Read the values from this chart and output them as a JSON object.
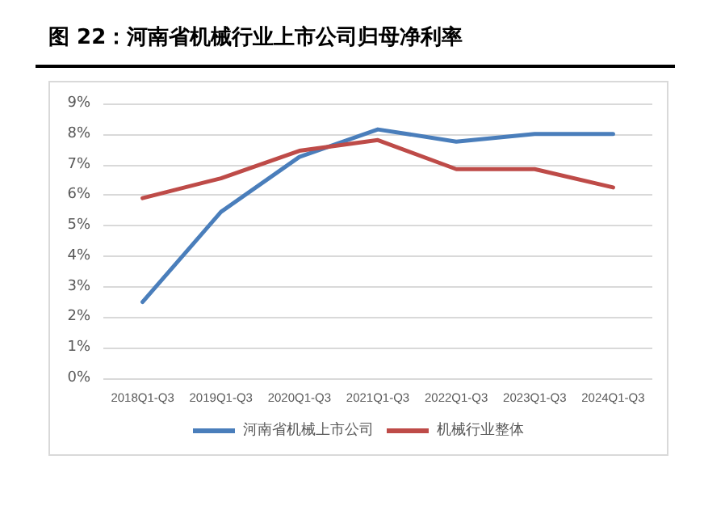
{
  "chart_data": {
    "type": "line",
    "title": "图 22：河南省机械行业上市公司归母净利率",
    "categories": [
      "2018Q1-Q3",
      "2019Q1-Q3",
      "2020Q1-Q3",
      "2021Q1-Q3",
      "2022Q1-Q3",
      "2023Q1-Q3",
      "2024Q1-Q3"
    ],
    "series": [
      {
        "name": "河南省机械上市公司",
        "color": "#4a7ebb",
        "values": [
          2.5,
          5.45,
          7.25,
          8.15,
          7.75,
          8.0,
          8.0
        ]
      },
      {
        "name": "机械行业整体",
        "color": "#be4b48",
        "values": [
          5.9,
          6.55,
          7.45,
          7.8,
          6.85,
          6.85,
          6.25
        ]
      }
    ],
    "ylim": [
      0,
      9
    ],
    "yticks": [
      {
        "value": 0,
        "label": "0%"
      },
      {
        "value": 1,
        "label": "1%"
      },
      {
        "value": 2,
        "label": "2%"
      },
      {
        "value": 3,
        "label": "3%"
      },
      {
        "value": 4,
        "label": "4%"
      },
      {
        "value": 5,
        "label": "5%"
      },
      {
        "value": 6,
        "label": "6%"
      },
      {
        "value": 7,
        "label": "7%"
      },
      {
        "value": 8,
        "label": "8%"
      },
      {
        "value": 9,
        "label": "9%"
      }
    ],
    "grid": "y",
    "legend": "bottom",
    "marker": "none",
    "line_style": "solid"
  }
}
